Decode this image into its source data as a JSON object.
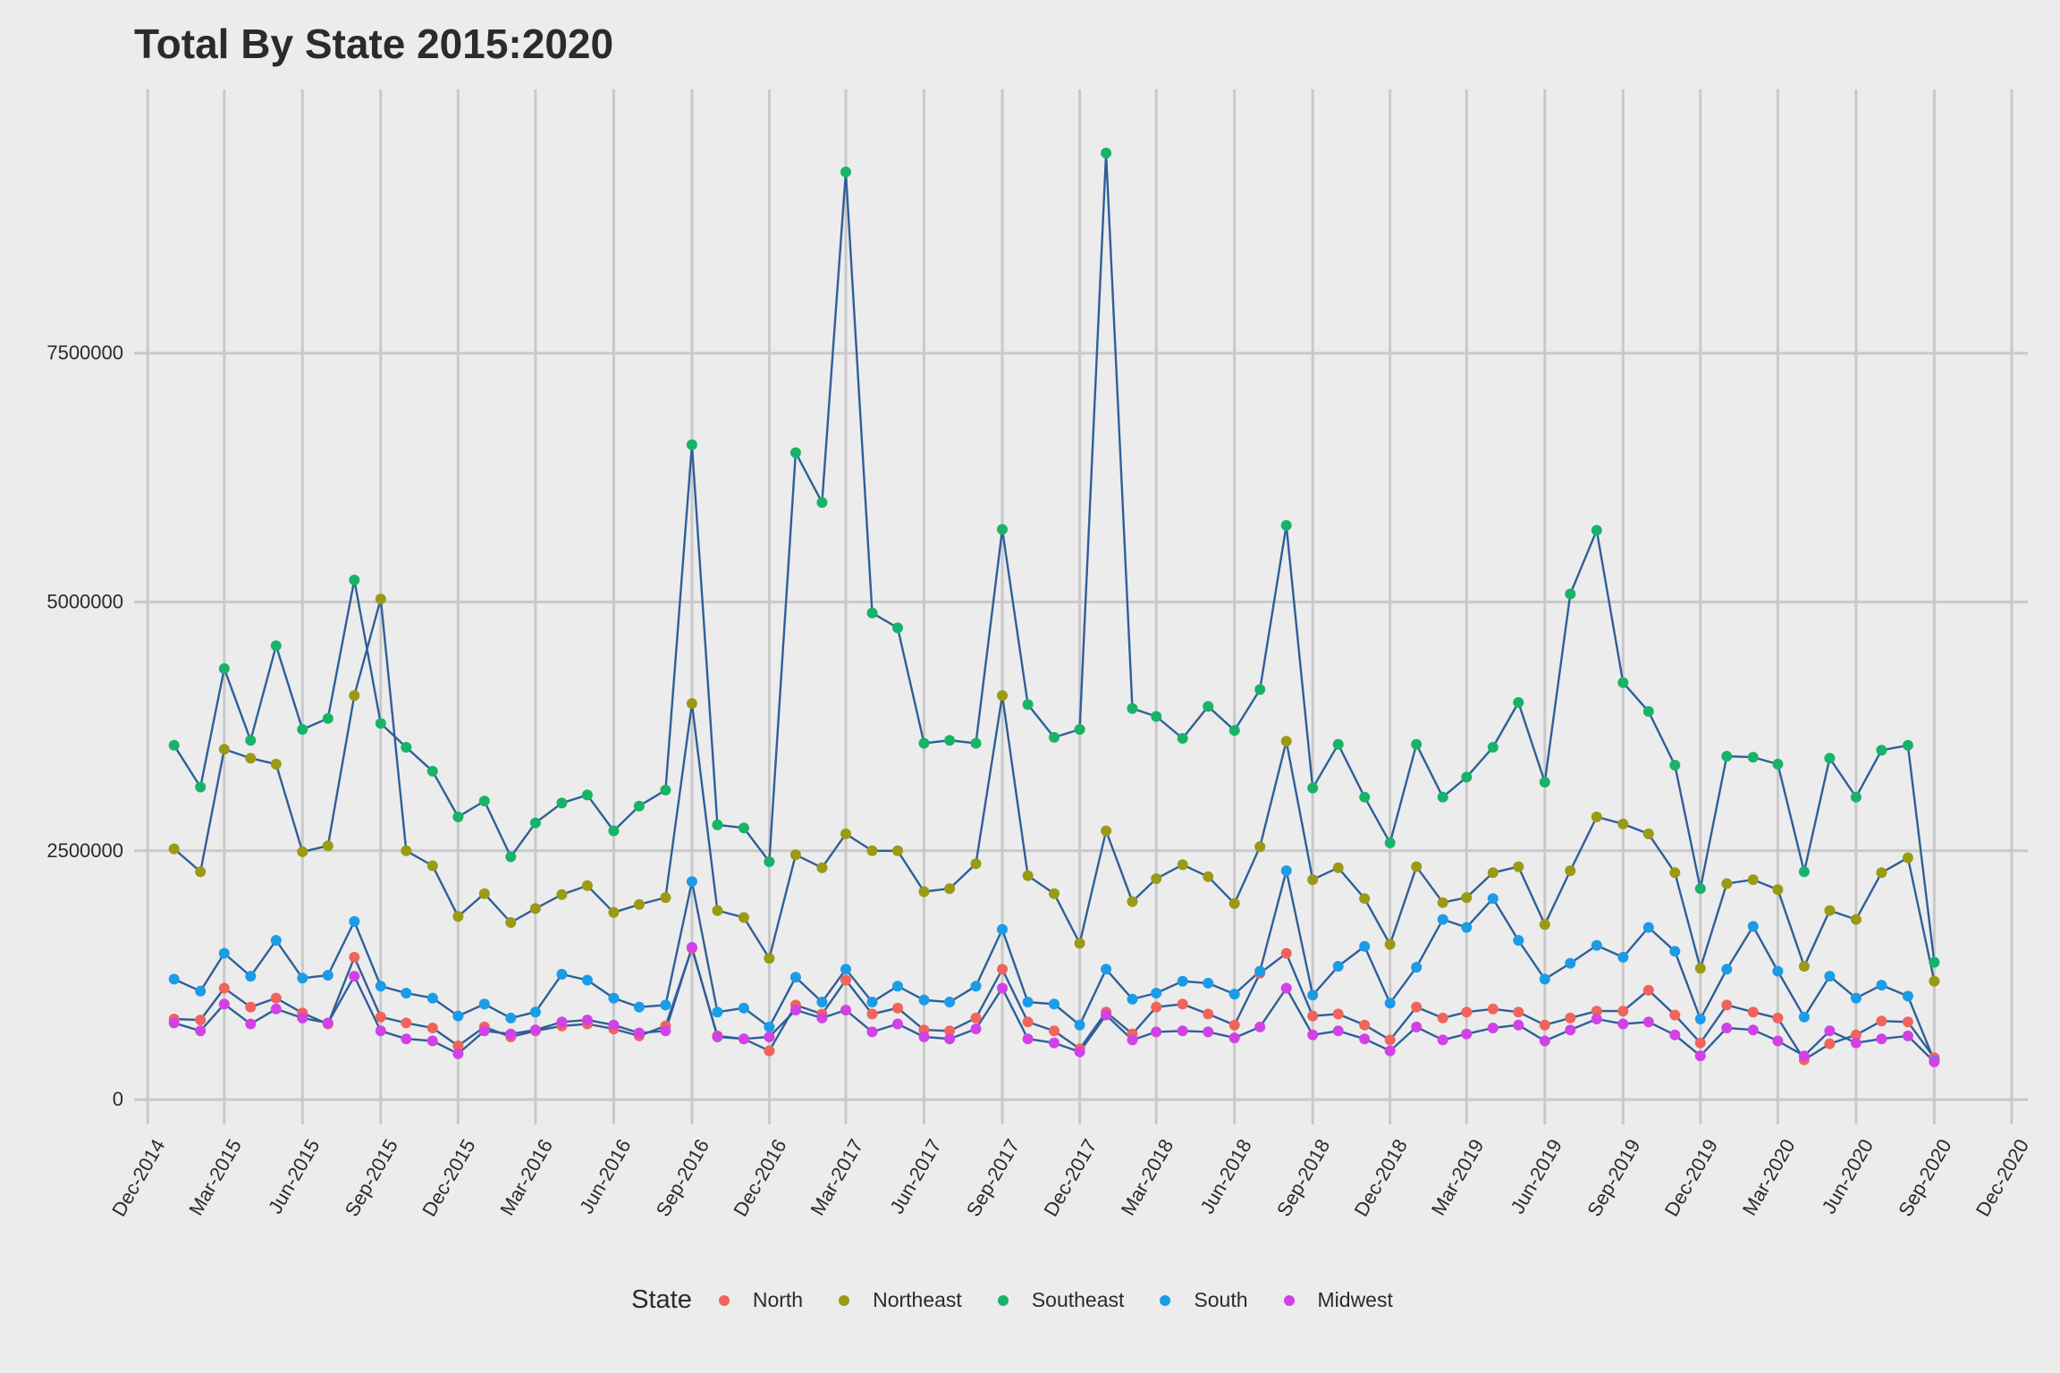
{
  "chart_data": {
    "type": "line",
    "title": "Total By State 2015:2020",
    "xlabel": "",
    "ylabel": "",
    "ylim": [
      -250000,
      10150000
    ],
    "y_ticks": [
      0,
      2500000,
      5000000,
      7500000
    ],
    "y_tick_labels": [
      "0",
      "2500000",
      "5000000",
      "7500000"
    ],
    "x_range": [
      "2014-11-15",
      "2020-12-20"
    ],
    "x_ticks": [
      "2014-12-01",
      "2015-03-01",
      "2015-06-01",
      "2015-09-01",
      "2015-12-01",
      "2016-03-01",
      "2016-06-01",
      "2016-09-01",
      "2016-12-01",
      "2017-03-01",
      "2017-06-01",
      "2017-09-01",
      "2017-12-01",
      "2018-03-01",
      "2018-06-01",
      "2018-09-01",
      "2018-12-01",
      "2019-03-01",
      "2019-06-01",
      "2019-09-01",
      "2019-12-01",
      "2020-03-01",
      "2020-06-01",
      "2020-09-01",
      "2020-12-01"
    ],
    "x_tick_labels": [
      "Dec-2014",
      "Mar-2015",
      "Jun-2015",
      "Sep-2015",
      "Dec-2015",
      "Mar-2016",
      "Jun-2016",
      "Sep-2016",
      "Dec-2016",
      "Mar-2017",
      "Jun-2017",
      "Sep-2017",
      "Dec-2017",
      "Mar-2018",
      "Jun-2018",
      "Sep-2018",
      "Dec-2018",
      "Mar-2019",
      "Jun-2019",
      "Sep-2019",
      "Dec-2019",
      "Mar-2020",
      "Jun-2020",
      "Sep-2020",
      "Dec-2020"
    ],
    "grid": true,
    "line_color": "#2f5f98",
    "legend_title": "State",
    "legend_position": "bottom",
    "x": [
      "2015-01-01",
      "2015-02-01",
      "2015-03-01",
      "2015-04-01",
      "2015-05-01",
      "2015-06-01",
      "2015-07-01",
      "2015-08-01",
      "2015-09-01",
      "2015-10-01",
      "2015-11-01",
      "2015-12-01",
      "2016-01-01",
      "2016-02-01",
      "2016-03-01",
      "2016-04-01",
      "2016-05-01",
      "2016-06-01",
      "2016-07-01",
      "2016-08-01",
      "2016-09-01",
      "2016-10-01",
      "2016-11-01",
      "2016-12-01",
      "2017-01-01",
      "2017-02-01",
      "2017-03-01",
      "2017-04-01",
      "2017-05-01",
      "2017-06-01",
      "2017-07-01",
      "2017-08-01",
      "2017-09-01",
      "2017-10-01",
      "2017-11-01",
      "2017-12-01",
      "2018-01-01",
      "2018-02-01",
      "2018-03-01",
      "2018-04-01",
      "2018-05-01",
      "2018-06-01",
      "2018-07-01",
      "2018-08-01",
      "2018-09-01",
      "2018-10-01",
      "2018-11-01",
      "2018-12-01",
      "2019-01-01",
      "2019-02-01",
      "2019-03-01",
      "2019-04-01",
      "2019-05-01",
      "2019-06-01",
      "2019-07-01",
      "2019-08-01",
      "2019-09-01",
      "2019-10-01",
      "2019-11-01",
      "2019-12-01",
      "2020-01-01",
      "2020-02-01",
      "2020-03-01",
      "2020-04-01",
      "2020-05-01",
      "2020-06-01",
      "2020-07-01",
      "2020-08-01",
      "2020-09-01"
    ],
    "series": [
      {
        "name": "North",
        "color": "#f0645b",
        "values": [
          810000,
          800000,
          1120000,
          930000,
          1020000,
          870000,
          760000,
          1430000,
          830000,
          770000,
          720000,
          540000,
          730000,
          630000,
          690000,
          740000,
          760000,
          710000,
          640000,
          740000,
          1520000,
          640000,
          610000,
          490000,
          950000,
          860000,
          1200000,
          860000,
          920000,
          700000,
          690000,
          820000,
          1310000,
          780000,
          690000,
          510000,
          880000,
          660000,
          930000,
          960000,
          860000,
          750000,
          1270000,
          1470000,
          840000,
          860000,
          750000,
          600000,
          930000,
          820000,
          880000,
          910000,
          880000,
          750000,
          820000,
          890000,
          890000,
          1100000,
          850000,
          570000,
          950000,
          880000,
          820000,
          400000,
          560000,
          650000,
          790000,
          780000,
          420000
        ]
      },
      {
        "name": "Northeast",
        "color": "#9a9a14",
        "values": [
          2520000,
          2290000,
          3520000,
          3430000,
          3370000,
          2490000,
          2550000,
          4060000,
          5030000,
          2500000,
          2350000,
          1840000,
          2070000,
          1780000,
          1920000,
          2060000,
          2150000,
          1880000,
          1960000,
          2030000,
          3980000,
          1900000,
          1830000,
          1420000,
          2460000,
          2330000,
          2670000,
          2500000,
          2500000,
          2090000,
          2120000,
          2370000,
          4060000,
          2250000,
          2070000,
          1570000,
          2700000,
          1990000,
          2220000,
          2360000,
          2240000,
          1970000,
          2540000,
          3600000,
          2210000,
          2330000,
          2020000,
          1560000,
          2340000,
          1980000,
          2030000,
          2280000,
          2340000,
          1760000,
          2300000,
          2840000,
          2770000,
          2670000,
          2280000,
          1320000,
          2170000,
          2210000,
          2110000,
          1340000,
          1900000,
          1810000,
          2280000,
          2430000,
          1190000
        ]
      },
      {
        "name": "Southeast",
        "color": "#18b368",
        "values": [
          3560000,
          3140000,
          4330000,
          3610000,
          4560000,
          3720000,
          3830000,
          5220000,
          3780000,
          3540000,
          3300000,
          2840000,
          3000000,
          2440000,
          2780000,
          2980000,
          3060000,
          2700000,
          2950000,
          3110000,
          6580000,
          2760000,
          2730000,
          2390000,
          6500000,
          6000000,
          9320000,
          4890000,
          4740000,
          3580000,
          3610000,
          3580000,
          5730000,
          3970000,
          3640000,
          3720000,
          9510000,
          3930000,
          3850000,
          3630000,
          3950000,
          3710000,
          4120000,
          5770000,
          3130000,
          3570000,
          3040000,
          2580000,
          3570000,
          3040000,
          3240000,
          3540000,
          3990000,
          3190000,
          5080000,
          5720000,
          4190000,
          3900000,
          3360000,
          2120000,
          3450000,
          3440000,
          3370000,
          2290000,
          3430000,
          3040000,
          3510000,
          3560000,
          1380000
        ]
      },
      {
        "name": "South",
        "color": "#1a9ce6",
        "values": [
          1210000,
          1090000,
          1470000,
          1240000,
          1600000,
          1220000,
          1250000,
          1790000,
          1140000,
          1070000,
          1020000,
          840000,
          960000,
          820000,
          880000,
          1260000,
          1200000,
          1020000,
          930000,
          950000,
          2190000,
          880000,
          920000,
          730000,
          1230000,
          980000,
          1310000,
          980000,
          1140000,
          1000000,
          980000,
          1140000,
          1710000,
          980000,
          960000,
          750000,
          1310000,
          1010000,
          1070000,
          1190000,
          1170000,
          1060000,
          1290000,
          2300000,
          1050000,
          1340000,
          1540000,
          970000,
          1330000,
          1810000,
          1730000,
          2020000,
          1600000,
          1210000,
          1370000,
          1550000,
          1430000,
          1730000,
          1490000,
          810000,
          1310000,
          1740000,
          1290000,
          830000,
          1240000,
          1020000,
          1150000,
          1040000,
          390000
        ]
      },
      {
        "name": "Midwest",
        "color": "#d142e6",
        "values": [
          770000,
          690000,
          960000,
          760000,
          910000,
          820000,
          770000,
          1240000,
          690000,
          610000,
          590000,
          460000,
          690000,
          660000,
          700000,
          780000,
          800000,
          750000,
          670000,
          690000,
          1530000,
          630000,
          610000,
          630000,
          900000,
          820000,
          900000,
          680000,
          760000,
          630000,
          610000,
          710000,
          1120000,
          610000,
          570000,
          480000,
          850000,
          600000,
          680000,
          690000,
          680000,
          620000,
          730000,
          1120000,
          650000,
          690000,
          610000,
          490000,
          730000,
          600000,
          660000,
          720000,
          750000,
          590000,
          700000,
          810000,
          760000,
          780000,
          650000,
          440000,
          720000,
          700000,
          590000,
          440000,
          690000,
          570000,
          610000,
          640000,
          380000
        ]
      }
    ]
  }
}
